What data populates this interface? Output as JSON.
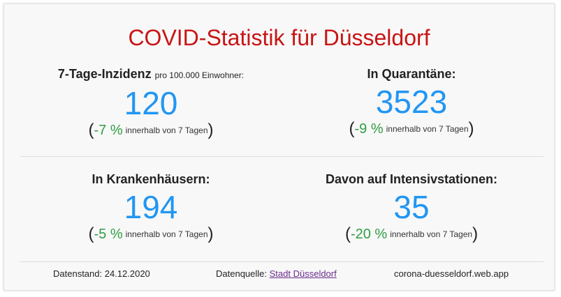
{
  "title": "COVID-Statistik für Düsseldorf",
  "colors": {
    "title": "#c81414",
    "value": "#2196f3",
    "change": "#2f9e44",
    "link": "#6a2c8c"
  },
  "stats": [
    {
      "label": "7-Tage-Inzidenz",
      "sublabel": "pro 100.000 Einwohner:",
      "value": "120",
      "change": "-7 %",
      "period": "innerhalb von 7 Tagen"
    },
    {
      "label": "In Quarantäne:",
      "sublabel": "",
      "value": "3523",
      "change": "-9 %",
      "period": "innerhalb von 7 Tagen"
    },
    {
      "label": "In Krankenhäusern:",
      "sublabel": "",
      "value": "194",
      "change": "-5 %",
      "period": "innerhalb von 7 Tagen"
    },
    {
      "label": "Davon auf Intensivstationen:",
      "sublabel": "",
      "value": "35",
      "change": "-20 %",
      "period": "innerhalb von 7 Tagen"
    }
  ],
  "footer": {
    "date_label": "Datenstand: 24.12.2020",
    "source_prefix": "Datenquelle:",
    "source_link": "Stadt Düsseldorf",
    "site": "corona-duesseldorf.web.app"
  }
}
